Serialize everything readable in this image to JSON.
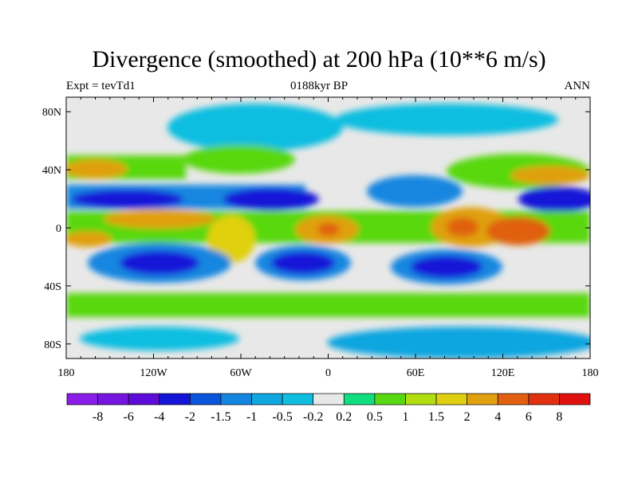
{
  "chart_data": {
    "type": "heatmap",
    "title": "Divergence (smoothed) at 200 hPa (10**6 m/s)",
    "left_label": "Expt = tevTd1",
    "center_label": "0188kyr BP",
    "right_label": "ANN",
    "x_ticks": [
      {
        "value": -180,
        "label": "180"
      },
      {
        "value": -120,
        "label": "120W"
      },
      {
        "value": -60,
        "label": "60W"
      },
      {
        "value": 0,
        "label": "0"
      },
      {
        "value": 60,
        "label": "60E"
      },
      {
        "value": 120,
        "label": "120E"
      },
      {
        "value": 180,
        "label": "180"
      }
    ],
    "y_ticks": [
      {
        "value": 80,
        "label": "80N"
      },
      {
        "value": 40,
        "label": "40N"
      },
      {
        "value": 0,
        "label": "0"
      },
      {
        "value": -40,
        "label": "40S"
      },
      {
        "value": -80,
        "label": "80S"
      }
    ],
    "xlim": [
      -180,
      180
    ],
    "ylim": [
      -90,
      90
    ],
    "colorbar": {
      "levels": [
        "-8",
        "-6",
        "-4",
        "-2",
        "-1.5",
        "-1",
        "-0.5",
        "-0.2",
        "0.2",
        "0.5",
        "1",
        "1.5",
        "2",
        "4",
        "6",
        "8"
      ],
      "colors": [
        "#8a1ee8",
        "#7416e0",
        "#5c0cd8",
        "#1414d8",
        "#0a55dc",
        "#1486e0",
        "#10a6e0",
        "#10bee0",
        "#e8e8e8",
        "#10dc80",
        "#58d810",
        "#b0de10",
        "#e0d010",
        "#e0a010",
        "#e06010",
        "#e03010",
        "#e01010"
      ]
    }
  }
}
